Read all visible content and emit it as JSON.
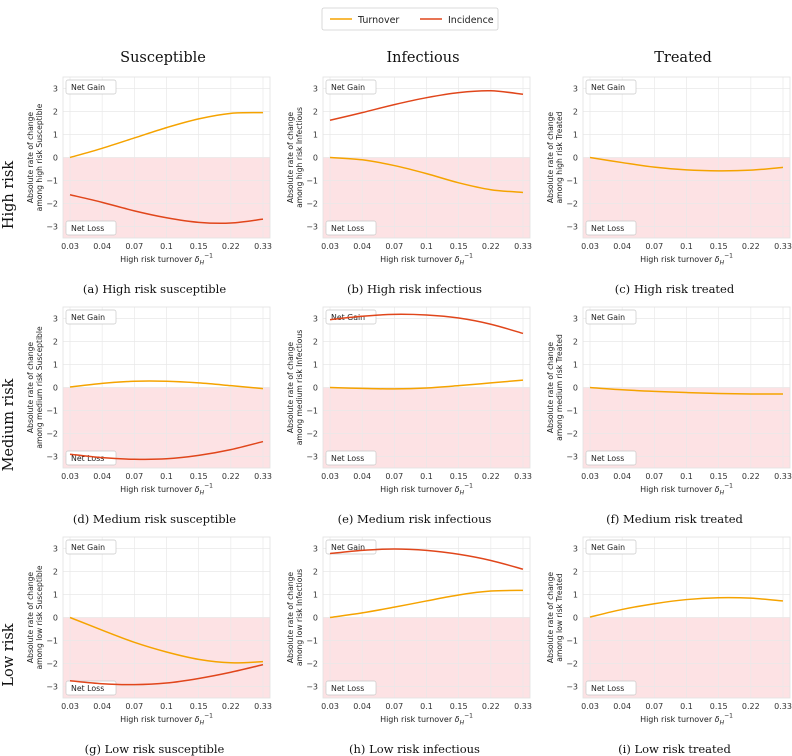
{
  "legend": {
    "position": "top-center",
    "entries": [
      {
        "label": "Turnover",
        "color": "#f5a300"
      },
      {
        "label": "Incidence",
        "color": "#e0461b"
      }
    ]
  },
  "columns": [
    "Susceptible",
    "Infectious",
    "Treated"
  ],
  "rows": [
    "High risk",
    "Medium risk",
    "Low risk"
  ],
  "colors": {
    "turnover": "#f5a300",
    "incidence": "#e0461b",
    "loss_region": "#fde2e4",
    "grid": "#e9e9e9"
  },
  "axis_common": {
    "xlabel_text": "High risk turnover",
    "xlabel_symbol": "δ",
    "xlabel_sub": "H",
    "xlabel_sup": "−1",
    "xticks": [
      "0.03",
      "0.04",
      "0.07",
      "0.1",
      "0.15",
      "0.22",
      "0.33"
    ],
    "yticks": [
      "3",
      "2",
      "1",
      "0",
      "−1",
      "−2",
      "−3"
    ],
    "ylabel_line1": "Absolute rate of change",
    "gain_label": "Net Gain",
    "loss_label": "Net Loss"
  },
  "chart_data": [
    {
      "type": "line",
      "caption": "(a) High risk susceptible",
      "ylabel_line2": "among high risk Susceptible",
      "ylim": [
        -3.5,
        3.5
      ],
      "series": [
        {
          "name": "Turnover",
          "values": [
            0.0,
            0.4,
            0.85,
            1.3,
            1.68,
            1.92,
            1.95
          ]
        },
        {
          "name": "Incidence",
          "values": [
            -1.62,
            -1.95,
            -2.32,
            -2.62,
            -2.82,
            -2.85,
            -2.68
          ]
        }
      ]
    },
    {
      "type": "line",
      "caption": "(b) High risk infectious",
      "ylabel_line2": "among high risk Infectious",
      "ylim": [
        -3.5,
        3.5
      ],
      "series": [
        {
          "name": "Turnover",
          "values": [
            0.0,
            -0.1,
            -0.35,
            -0.7,
            -1.1,
            -1.4,
            -1.52
          ]
        },
        {
          "name": "Incidence",
          "values": [
            1.62,
            1.95,
            2.3,
            2.6,
            2.82,
            2.9,
            2.75
          ]
        }
      ]
    },
    {
      "type": "line",
      "caption": "(c) High risk treated",
      "ylabel_line2": "among high risk Treated",
      "ylim": [
        -3.5,
        3.5
      ],
      "series": [
        {
          "name": "Turnover",
          "values": [
            0.0,
            -0.22,
            -0.42,
            -0.54,
            -0.58,
            -0.55,
            -0.43
          ]
        }
      ]
    },
    {
      "type": "line",
      "caption": "(d) Medium risk susceptible",
      "ylabel_line2": "among medium risk Susceptible",
      "ylim": [
        -3.5,
        3.5
      ],
      "series": [
        {
          "name": "Turnover",
          "values": [
            0.02,
            0.18,
            0.27,
            0.27,
            0.2,
            0.08,
            -0.05
          ]
        },
        {
          "name": "Incidence",
          "values": [
            -2.9,
            -3.05,
            -3.12,
            -3.1,
            -2.95,
            -2.7,
            -2.35
          ]
        }
      ]
    },
    {
      "type": "line",
      "caption": "(e) Medium risk infectious",
      "ylabel_line2": "among medium risk Infectious",
      "ylim": [
        -3.5,
        3.5
      ],
      "series": [
        {
          "name": "Turnover",
          "values": [
            0.0,
            -0.04,
            -0.06,
            -0.02,
            0.08,
            0.2,
            0.32
          ]
        },
        {
          "name": "Incidence",
          "values": [
            2.95,
            3.1,
            3.18,
            3.15,
            3.02,
            2.75,
            2.35
          ]
        }
      ]
    },
    {
      "type": "line",
      "caption": "(f) Medium risk treated",
      "ylabel_line2": "among medium risk Treated",
      "ylim": [
        -3.5,
        3.5
      ],
      "series": [
        {
          "name": "Turnover",
          "values": [
            0.0,
            -0.1,
            -0.17,
            -0.22,
            -0.26,
            -0.28,
            -0.28
          ]
        }
      ]
    },
    {
      "type": "line",
      "caption": "(g) Low risk susceptible",
      "ylabel_line2": "among low risk Susceptible",
      "ylim": [
        -3.5,
        3.5
      ],
      "series": [
        {
          "name": "Turnover",
          "values": [
            0.0,
            -0.55,
            -1.08,
            -1.5,
            -1.82,
            -1.97,
            -1.92
          ]
        },
        {
          "name": "Incidence",
          "values": [
            -2.75,
            -2.88,
            -2.92,
            -2.85,
            -2.65,
            -2.38,
            -2.05
          ]
        }
      ]
    },
    {
      "type": "line",
      "caption": "(h) Low risk infectious",
      "ylabel_line2": "among low risk Infectious",
      "ylim": [
        -3.5,
        3.5
      ],
      "series": [
        {
          "name": "Turnover",
          "values": [
            0.0,
            0.2,
            0.45,
            0.72,
            0.98,
            1.15,
            1.18
          ]
        },
        {
          "name": "Incidence",
          "values": [
            2.78,
            2.92,
            2.98,
            2.92,
            2.75,
            2.48,
            2.1
          ]
        }
      ]
    },
    {
      "type": "line",
      "caption": "(i) Low risk treated",
      "ylabel_line2": "among low risk Treated",
      "ylim": [
        -3.5,
        3.5
      ],
      "series": [
        {
          "name": "Turnover",
          "values": [
            0.02,
            0.35,
            0.6,
            0.78,
            0.86,
            0.84,
            0.72
          ]
        }
      ]
    }
  ]
}
